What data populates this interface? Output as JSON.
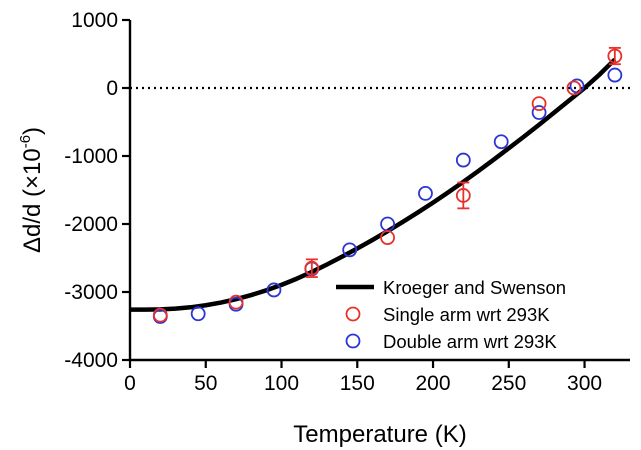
{
  "chart_data": {
    "type": "scatter",
    "xlabel": "Temperature (K)",
    "ylabel": {
      "main": "Δd/d (×10",
      "superscript": "-6",
      "close": ")"
    },
    "xlim": [
      0,
      330
    ],
    "ylim": [
      -4000,
      1000
    ],
    "xticks": [
      "0",
      "50",
      "100",
      "150",
      "200",
      "250",
      "300"
    ],
    "yticks": [
      "-4000",
      "-3000",
      "-2000",
      "-1000",
      "0",
      "1000"
    ],
    "reference_line": {
      "y": 0,
      "style": "dotted"
    },
    "legend_position": "bottom-right",
    "series": [
      {
        "name": "Kroeger and Swenson",
        "kind": "line",
        "color": "#000000",
        "x": [
          0,
          10,
          20,
          30,
          40,
          50,
          60,
          70,
          80,
          90,
          100,
          110,
          120,
          130,
          140,
          150,
          160,
          170,
          180,
          190,
          200,
          210,
          220,
          230,
          240,
          250,
          260,
          270,
          280,
          290,
          300,
          310,
          320
        ],
        "y": [
          -3260,
          -3260,
          -3255,
          -3245,
          -3225,
          -3195,
          -3155,
          -3105,
          -3045,
          -2975,
          -2895,
          -2805,
          -2705,
          -2595,
          -2480,
          -2360,
          -2235,
          -2105,
          -1970,
          -1830,
          -1685,
          -1535,
          -1380,
          -1220,
          -1055,
          -885,
          -715,
          -540,
          -360,
          -180,
          0,
          200,
          420
        ]
      },
      {
        "name": "Single arm wrt 293K",
        "kind": "markers",
        "color": "#e8312a",
        "x": [
          20,
          70,
          120,
          170,
          220,
          270,
          293,
          320
        ],
        "y": [
          -3340,
          -3150,
          -2650,
          -2200,
          -1580,
          -230,
          0,
          470
        ],
        "err": [
          0,
          0,
          130,
          0,
          190,
          0,
          0,
          120
        ]
      },
      {
        "name": "Double arm wrt 293K",
        "kind": "markers",
        "color": "#2a35d6",
        "x": [
          20,
          45,
          70,
          95,
          120,
          145,
          170,
          195,
          220,
          245,
          270,
          295,
          320
        ],
        "y": [
          -3360,
          -3320,
          -3180,
          -2970,
          -2660,
          -2380,
          -2000,
          -1550,
          -1060,
          -790,
          -360,
          30,
          190
        ]
      }
    ]
  }
}
